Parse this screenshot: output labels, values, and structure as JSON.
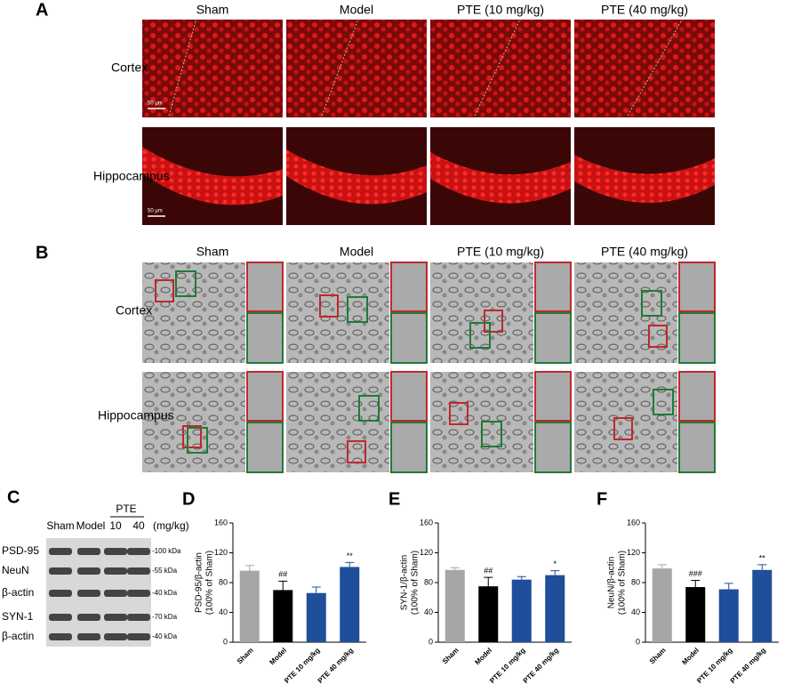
{
  "panel_labels": [
    "A",
    "B",
    "C",
    "D",
    "E",
    "F"
  ],
  "panel_a": {
    "columns": [
      "Sham",
      "Model",
      "PTE (10 mg/kg)",
      "PTE (40 mg/kg)"
    ],
    "rows": [
      "Cortex",
      "Hippocampus"
    ],
    "scale_bar": "50 μm"
  },
  "panel_b": {
    "columns": [
      "Sham",
      "Model",
      "PTE (10 mg/kg)",
      "PTE (40 mg/kg)"
    ],
    "rows": [
      "Cortex",
      "Hippocampus"
    ]
  },
  "panel_c": {
    "lanes": [
      "Sham",
      "Model"
    ],
    "treatment": "PTE",
    "doses": [
      "10",
      "40"
    ],
    "unit": "(mg/kg)",
    "blots": [
      {
        "protein": "PSD-95",
        "size": "-100 kDa"
      },
      {
        "protein": "NeuN",
        "size": "-55 kDa"
      },
      {
        "protein": "β-actin",
        "size": "-40 kDa"
      },
      {
        "protein": "SYN-1",
        "size": "-70 kDa"
      },
      {
        "protein": "β-actin",
        "size": "-40 kDa"
      }
    ]
  },
  "chart_data": [
    {
      "type": "bar",
      "y_label": [
        "PSD-95/β-actin",
        "(100% of Sham)"
      ],
      "categories": [
        "Sham",
        "Model",
        "PTE 10 mg/kg",
        "PTE 40 mg/kg"
      ],
      "values": [
        96,
        70,
        66,
        101
      ],
      "errors": [
        7,
        12,
        8,
        6
      ],
      "annotations": [
        null,
        "##",
        null,
        "**"
      ],
      "colors": [
        "#a6a6a6",
        "#000000",
        "#1f4e9a",
        "#1f4e9a"
      ],
      "ylim": [
        0,
        160
      ],
      "yticks": [
        0,
        40,
        80,
        120,
        160
      ]
    },
    {
      "type": "bar",
      "y_label": [
        "SYN-1/β-actin",
        "(100% of Sham)"
      ],
      "categories": [
        "Sham",
        "Model",
        "PTE 10 mg/kg",
        "PTE 40 mg/kg"
      ],
      "values": [
        97,
        75,
        84,
        90
      ],
      "errors": [
        3,
        12,
        4,
        6
      ],
      "annotations": [
        null,
        "##",
        null,
        "*"
      ],
      "colors": [
        "#a6a6a6",
        "#000000",
        "#1f4e9a",
        "#1f4e9a"
      ],
      "ylim": [
        0,
        160
      ],
      "yticks": [
        0,
        40,
        80,
        120,
        160
      ]
    },
    {
      "type": "bar",
      "y_label": [
        "NeuN/β-actin",
        "(100% of Sham)"
      ],
      "categories": [
        "Sham",
        "Model",
        "PTE 10 mg/kg",
        "PTE 40 mg/kg"
      ],
      "values": [
        99,
        74,
        71,
        97
      ],
      "errors": [
        5,
        9,
        8,
        7
      ],
      "annotations": [
        null,
        "###",
        null,
        "**"
      ],
      "colors": [
        "#a6a6a6",
        "#000000",
        "#1f4e9a",
        "#1f4e9a"
      ],
      "ylim": [
        0,
        160
      ],
      "yticks": [
        0,
        40,
        80,
        120,
        160
      ]
    }
  ]
}
